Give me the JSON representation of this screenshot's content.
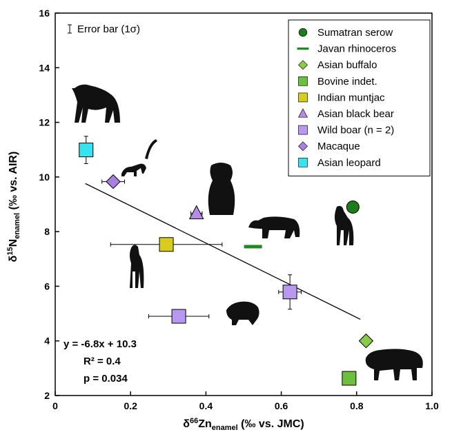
{
  "chart_data": {
    "type": "scatter",
    "xlabel": {
      "prefix": "δ",
      "sup": "66",
      "main": "Zn",
      "sub": "enamel",
      "suffix": " (‰ vs. JMC)"
    },
    "ylabel": {
      "prefix": "δ",
      "sup": "15",
      "main": "N",
      "sub": "enamel",
      "suffix": " (‰ vs. AIR)"
    },
    "xlim": [
      0,
      1
    ],
    "ylim": [
      2,
      16
    ],
    "xticks": [
      0,
      0.2,
      0.4,
      0.6,
      0.8,
      {
        "value": 1,
        "label": "1.0"
      }
    ],
    "yticks": [
      2,
      4,
      6,
      8,
      10,
      12,
      14,
      16
    ],
    "legend_position": "upper right",
    "error_bar_legend": "Error bar (1σ)",
    "series": [
      {
        "name": "Sumatran serow",
        "marker": "circle",
        "color": "#1b7d1b",
        "x": [
          0.79
        ],
        "y": [
          8.9
        ],
        "xerr": [
          0.015
        ],
        "yerr": [
          null
        ]
      },
      {
        "name": "Javan rhinoceros",
        "marker": "dash",
        "color": "#1f8a1f",
        "x": [
          0.525
        ],
        "y": [
          7.45
        ],
        "xerr": [
          null
        ],
        "yerr": [
          null
        ]
      },
      {
        "name": "Asian buffalo",
        "marker": "diamond",
        "color": "#86cc44",
        "x": [
          0.825
        ],
        "y": [
          4.0
        ],
        "xerr": [
          null
        ],
        "yerr": [
          null
        ]
      },
      {
        "name": "Bovine indet.",
        "marker": "square",
        "color": "#6cc03c",
        "x": [
          0.78
        ],
        "y": [
          2.63
        ],
        "xerr": [
          null
        ],
        "yerr": [
          null
        ]
      },
      {
        "name": "Indian muntjac",
        "marker": "square",
        "color": "#d8cc1e",
        "x": [
          0.295
        ],
        "y": [
          7.53
        ],
        "xerr": [
          0.148
        ],
        "yerr": [
          null
        ]
      },
      {
        "name": "Asian black bear",
        "marker": "triangle",
        "color": "#b48ce8",
        "x": [
          0.375
        ],
        "y": [
          8.67
        ],
        "xerr": [
          0.015
        ],
        "yerr": [
          null
        ]
      },
      {
        "name": "Wild boar (n = 2)",
        "marker": "square",
        "color": "#b898f0",
        "x": [
          0.328,
          0.623
        ],
        "y": [
          4.9,
          5.79
        ],
        "xerr": [
          0.08,
          0.03
        ],
        "yerr": [
          null,
          0.63
        ]
      },
      {
        "name": "Macaque",
        "marker": "diamond",
        "color": "#a880e2",
        "x": [
          0.154
        ],
        "y": [
          9.83
        ],
        "xerr": [
          0.03
        ],
        "yerr": [
          null
        ]
      },
      {
        "name": "Asian leopard",
        "marker": "square",
        "color": "#36e4ef",
        "x": [
          0.082
        ],
        "y": [
          10.99
        ],
        "xerr": [
          null
        ],
        "yerr": [
          0.5
        ]
      }
    ],
    "fit": {
      "x": [
        0.08,
        0.81
      ],
      "y": [
        9.76,
        4.79
      ]
    },
    "stats": [
      "y = -6.8x + 10.3",
      "R² = 0.4",
      "p = 0.034"
    ]
  }
}
